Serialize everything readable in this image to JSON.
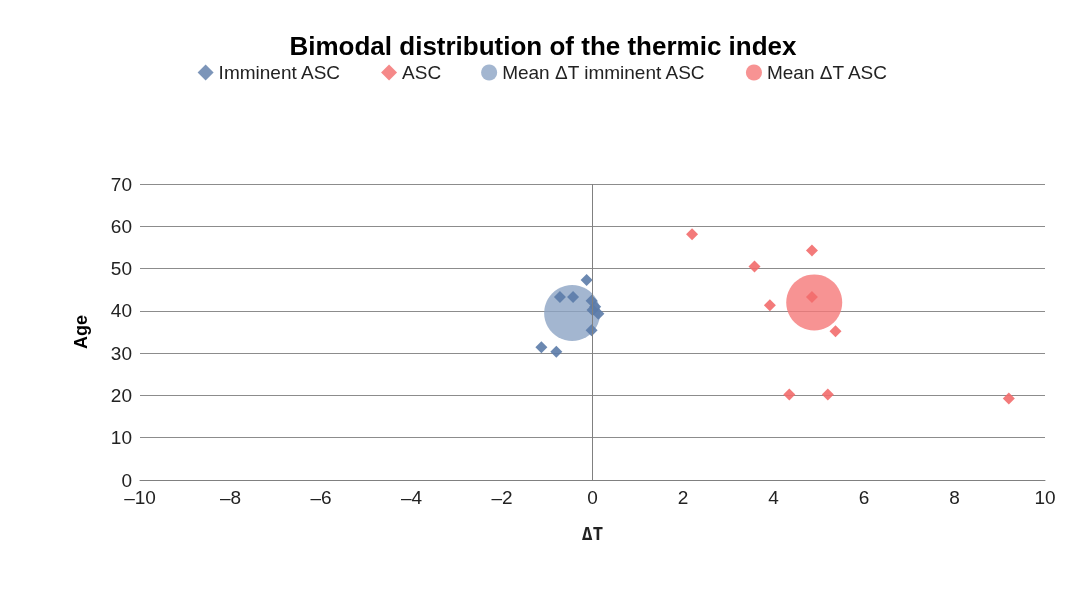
{
  "chart_data": {
    "type": "scatter",
    "title": "Bimodal distribution of the thermic index",
    "xlabel": "ΔT",
    "ylabel": "Age",
    "series": [
      {
        "name": "Imminent ASC",
        "color": "#5b7ba8",
        "marker": "diamond",
        "x": [
          -0.13,
          -0.72,
          -0.43,
          -0.02,
          0.06,
          0.13,
          0,
          -0.02,
          -1.13,
          -0.8
        ],
        "values": [
          47.3,
          43.3,
          43.3,
          42.4,
          41,
          39.3,
          40.2,
          35.4,
          31.4,
          30.3
        ]
      },
      {
        "name": "ASC",
        "color": "#f26b6b",
        "marker": "diamond",
        "x": [
          2.2,
          4.85,
          3.58,
          3.92,
          4.85,
          5.37,
          4.35,
          5.2,
          9.2
        ],
        "values": [
          58.1,
          54.3,
          50.5,
          41.3,
          43.3,
          35.2,
          20.2,
          20.2,
          19.3
        ]
      },
      {
        "name": "Mean ΔT imminent ASC",
        "color": "#8ca4c4",
        "marker": "circle",
        "x": [
          -0.45
        ],
        "values": [
          39.5
        ]
      },
      {
        "name": "Mean ΔT ASC",
        "color": "#f57878",
        "marker": "circle",
        "x": [
          4.9
        ],
        "values": [
          42
        ]
      }
    ],
    "xlim": [
      -10,
      10
    ],
    "xticks": [
      {
        "value": -10,
        "label": "–10"
      },
      {
        "value": -8,
        "label": "–8"
      },
      {
        "value": -6,
        "label": "–6"
      },
      {
        "value": -4,
        "label": "–4"
      },
      {
        "value": -2,
        "label": "–2"
      },
      0,
      2,
      4,
      6,
      8,
      10
    ],
    "ylim": [
      0,
      70
    ],
    "yticks": [
      0,
      10,
      20,
      30,
      40,
      50,
      60,
      70
    ],
    "grid": "y",
    "legend": "top",
    "ref_lines": [
      {
        "axis": "x",
        "value": 0,
        "color": "#808080"
      }
    ]
  }
}
